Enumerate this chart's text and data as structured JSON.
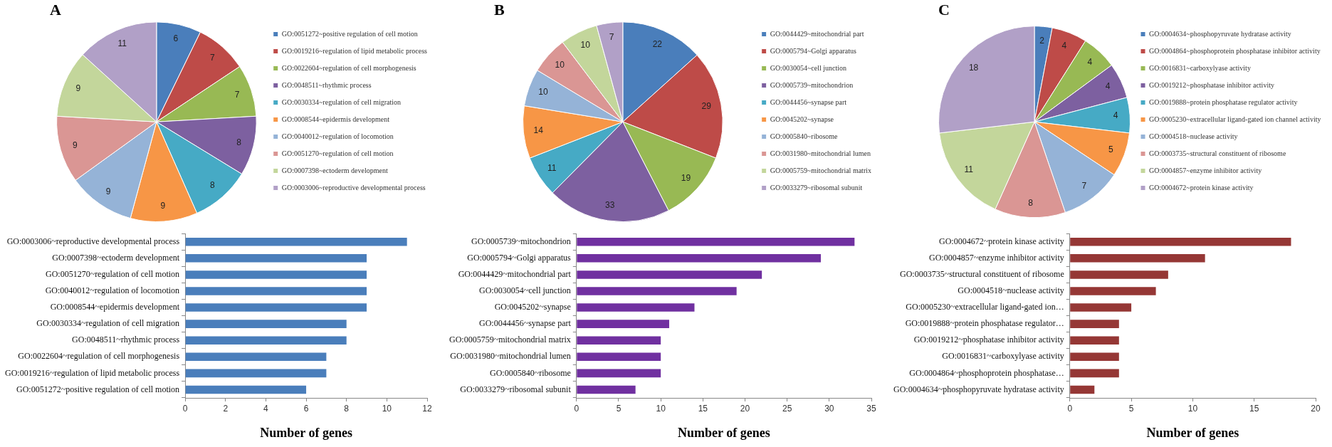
{
  "chart_data": [
    {
      "type": "pie",
      "title": "A",
      "categories": [
        "GO:0051272~positive regulation of cell motion",
        "GO:0019216~regulation of lipid metabolic process",
        "GO:0022604~regulation of cell morphogenesis",
        "GO:0048511~rhythmic process",
        "GO:0030334~regulation of cell migration",
        "GO:0008544~epidermis development",
        "GO:0040012~regulation of locomotion",
        "GO:0051270~regulation of cell motion",
        "GO:0007398~ectoderm development",
        "GO:0003006~reproductive developmental process"
      ],
      "values": [
        6,
        7,
        7,
        8,
        8,
        9,
        9,
        9,
        9,
        11
      ],
      "colors": [
        "#4a7ebb",
        "#be4b48",
        "#98b954",
        "#7d60a0",
        "#46aac5",
        "#f79646",
        "#95b3d7",
        "#da9694",
        "#c3d69b",
        "#b1a0c7"
      ],
      "legend": "right",
      "data_labels": true
    },
    {
      "type": "pie",
      "title": "B",
      "categories": [
        "GO:0044429~mitochondrial part",
        "GO:0005794~Golgi apparatus",
        "GO:0030054~cell junction",
        "GO:0005739~mitochondrion",
        "GO:0044456~synapse part",
        "GO:0045202~synapse",
        "GO:0005840~ribosome",
        "GO:0031980~mitochondrial lumen",
        "GO:0005759~mitochondrial matrix",
        "GO:0033279~ribosomal subunit"
      ],
      "values": [
        22,
        29,
        19,
        33,
        11,
        14,
        10,
        10,
        10,
        7
      ],
      "colors": [
        "#4a7ebb",
        "#be4b48",
        "#98b954",
        "#7d60a0",
        "#46aac5",
        "#f79646",
        "#95b3d7",
        "#da9694",
        "#c3d69b",
        "#b1a0c7"
      ],
      "legend": "right",
      "data_labels": true
    },
    {
      "type": "pie",
      "title": "C",
      "categories": [
        "GO:0004634~phosphopyruvate hydratase activity",
        "GO:0004864~phosphoprotein phosphatase inhibitor activity",
        "GO:0016831~carboxylyase activity",
        "GO:0019212~phosphatase inhibitor activity",
        "GO:0019888~protein phosphatase regulator activity",
        "GO:0005230~extracellular ligand-gated ion channel activity",
        "GO:0004518~nuclease activity",
        "GO:0003735~structural constituent of ribosome",
        "GO:0004857~enzyme inhibitor activity",
        "GO:0004672~protein kinase activity"
      ],
      "values": [
        2,
        4,
        4,
        4,
        4,
        5,
        7,
        8,
        11,
        18
      ],
      "colors": [
        "#4a7ebb",
        "#be4b48",
        "#98b954",
        "#7d60a0",
        "#46aac5",
        "#f79646",
        "#95b3d7",
        "#da9694",
        "#c3d69b",
        "#b1a0c7"
      ],
      "legend": "right",
      "data_labels": true
    },
    {
      "type": "bar",
      "orientation": "horizontal",
      "xlabel": "Number of genes",
      "categories": [
        "GO:0003006~reproductive developmental process",
        "GO:0007398~ectoderm development",
        "GO:0051270~regulation of cell motion",
        "GO:0040012~regulation of locomotion",
        "GO:0008544~epidermis development",
        "GO:0030334~regulation of cell migration",
        "GO:0048511~rhythmic process",
        "GO:0022604~regulation of cell morphogenesis",
        "GO:0019216~regulation of lipid metabolic process",
        "GO:0051272~positive regulation of cell motion"
      ],
      "values": [
        11,
        9,
        9,
        9,
        9,
        8,
        8,
        7,
        7,
        6
      ],
      "color": "#4a7ebb",
      "xlim": [
        0,
        12
      ],
      "xticks": [
        0,
        2,
        4,
        6,
        8,
        10,
        12
      ],
      "grid": false,
      "legend": false
    },
    {
      "type": "bar",
      "orientation": "horizontal",
      "xlabel": "Number of genes",
      "categories": [
        "GO:0005739~mitochondrion",
        "GO:0005794~Golgi apparatus",
        "GO:0044429~mitochondrial part",
        "GO:0030054~cell junction",
        "GO:0045202~synapse",
        "GO:0044456~synapse part",
        "GO:0005759~mitochondrial matrix",
        "GO:0031980~mitochondrial lumen",
        "GO:0005840~ribosome",
        "GO:0033279~ribosomal subunit"
      ],
      "values": [
        33,
        29,
        22,
        19,
        14,
        11,
        10,
        10,
        10,
        7
      ],
      "color": "#7030a0",
      "xlim": [
        0,
        35
      ],
      "xticks": [
        0,
        5,
        10,
        15,
        20,
        25,
        30,
        35
      ],
      "grid": false,
      "legend": false
    },
    {
      "type": "bar",
      "orientation": "horizontal",
      "xlabel": "Number of genes",
      "categories": [
        "GO:0004672~protein kinase activity",
        "GO:0004857~enzyme inhibitor activity",
        "GO:0003735~structural constituent of ribosome",
        "GO:0004518~nuclease activity",
        "GO:0005230~extracellular ligand-gated ion…",
        "GO:0019888~protein phosphatase regulator…",
        "GO:0019212~phosphatase inhibitor activity",
        "GO:0016831~carboxylyase activity",
        "GO:0004864~phosphoprotein phosphatase…",
        "GO:0004634~phosphopyruvate hydratase activity"
      ],
      "values": [
        18,
        11,
        8,
        7,
        5,
        4,
        4,
        4,
        4,
        2
      ],
      "color": "#953735",
      "xlim": [
        0,
        20
      ],
      "xticks": [
        0,
        5,
        10,
        15,
        20
      ],
      "grid": false,
      "legend": false
    }
  ]
}
